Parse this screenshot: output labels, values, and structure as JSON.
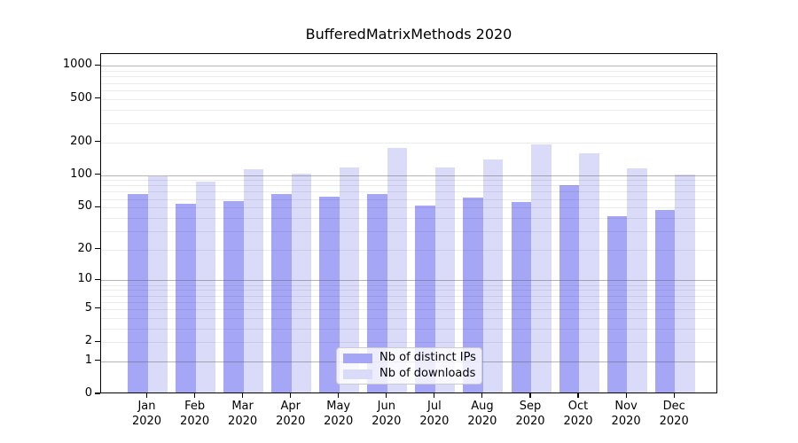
{
  "chart_data": {
    "type": "bar",
    "title": "BufferedMatrixMethods 2020",
    "scale": "log1p",
    "categories": [
      "Jan",
      "Feb",
      "Mar",
      "Apr",
      "May",
      "Jun",
      "Jul",
      "Aug",
      "Sep",
      "Oct",
      "Nov",
      "Dec"
    ],
    "year": "2020",
    "series": [
      {
        "name": "Nb of distinct IPs",
        "color": "#a6a6f7",
        "values": [
          64,
          52,
          55,
          64,
          61,
          64,
          50,
          60,
          54,
          77,
          40,
          46
        ]
      },
      {
        "name": "Nb of downloads",
        "color": "#dadaf9",
        "values": [
          93,
          84,
          109,
          100,
          112,
          170,
          113,
          133,
          185,
          152,
          111,
          97
        ]
      }
    ],
    "yticks": [
      0,
      1,
      2,
      5,
      10,
      20,
      50,
      100,
      200,
      500,
      1000
    ],
    "major_gridlines": [
      1,
      10,
      100,
      1000
    ],
    "minor_gridline_decades": [
      1,
      10,
      100
    ],
    "ylim": [
      0,
      1285
    ],
    "grid": "on",
    "legend_position": "lower center",
    "background_color": "#ffffff",
    "spine_color": "#000000"
  }
}
